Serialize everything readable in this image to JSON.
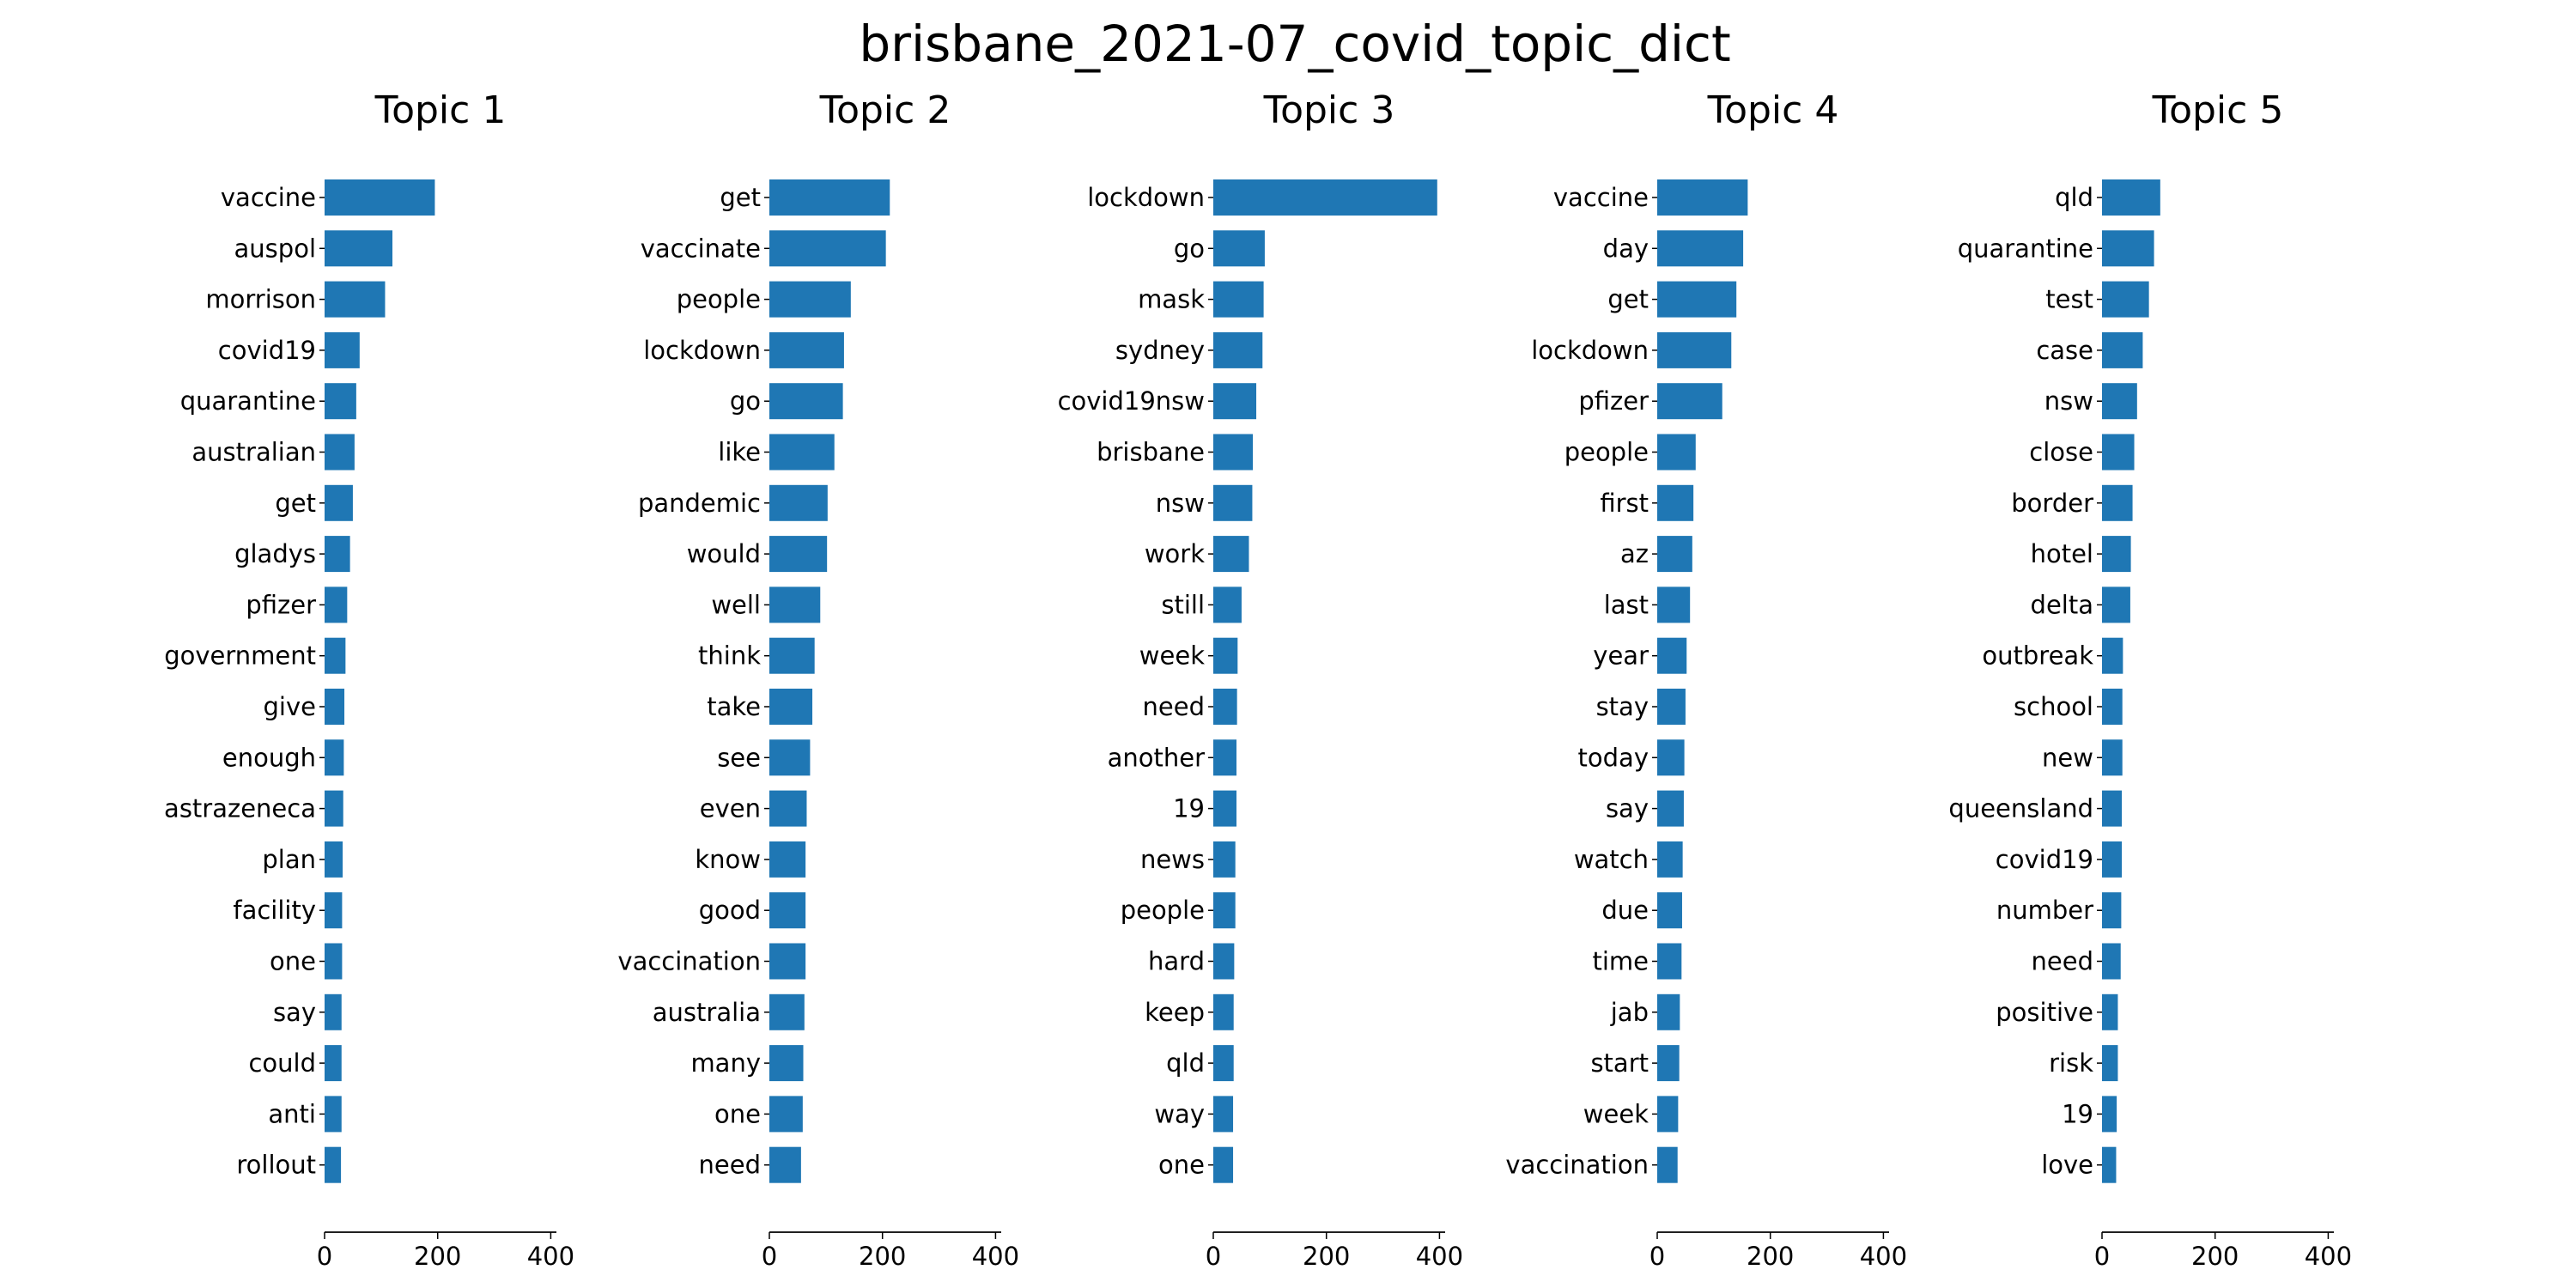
{
  "title": "brisbane_2021-07_covid_topic_dict",
  "bar_color": "#1f77b4",
  "chart_data": [
    {
      "type": "bar",
      "orientation": "horizontal",
      "title": "Topic 1",
      "xlim": [
        0,
        410
      ],
      "xticks": [
        "0",
        "200",
        "400"
      ],
      "categories": [
        "vaccine",
        "auspol",
        "morrison",
        "covid19",
        "quarantine",
        "australian",
        "get",
        "gladys",
        "pfizer",
        "government",
        "give",
        "enough",
        "astrazeneca",
        "plan",
        "facility",
        "one",
        "say",
        "could",
        "anti",
        "rollout"
      ],
      "values": [
        195,
        120,
        107,
        62,
        56,
        53,
        50,
        45,
        40,
        37,
        35,
        34,
        33,
        32,
        31,
        31,
        30,
        30,
        30,
        29
      ]
    },
    {
      "type": "bar",
      "orientation": "horizontal",
      "title": "Topic 2",
      "xlim": [
        0,
        410
      ],
      "xticks": [
        "0",
        "200",
        "400"
      ],
      "categories": [
        "get",
        "vaccinate",
        "people",
        "lockdown",
        "go",
        "like",
        "pandemic",
        "would",
        "well",
        "think",
        "take",
        "see",
        "even",
        "know",
        "good",
        "vaccination",
        "australia",
        "many",
        "one",
        "need"
      ],
      "values": [
        213,
        206,
        144,
        132,
        130,
        115,
        103,
        102,
        90,
        80,
        76,
        72,
        66,
        64,
        64,
        64,
        62,
        60,
        59,
        56
      ]
    },
    {
      "type": "bar",
      "orientation": "horizontal",
      "title": "Topic 3",
      "xlim": [
        0,
        410
      ],
      "xticks": [
        "0",
        "200",
        "400"
      ],
      "categories": [
        "lockdown",
        "go",
        "mask",
        "sydney",
        "covid19nsw",
        "brisbane",
        "nsw",
        "work",
        "still",
        "week",
        "need",
        "another",
        "19",
        "news",
        "people",
        "hard",
        "keep",
        "qld",
        "way",
        "one"
      ],
      "values": [
        396,
        91,
        89,
        87,
        76,
        70,
        69,
        63,
        50,
        43,
        42,
        41,
        41,
        39,
        39,
        37,
        36,
        36,
        35,
        35
      ]
    },
    {
      "type": "bar",
      "orientation": "horizontal",
      "title": "Topic 4",
      "xlim": [
        0,
        410
      ],
      "xticks": [
        "0",
        "200",
        "400"
      ],
      "categories": [
        "vaccine",
        "day",
        "get",
        "lockdown",
        "pfizer",
        "people",
        "first",
        "az",
        "last",
        "year",
        "stay",
        "today",
        "say",
        "watch",
        "due",
        "time",
        "jab",
        "start",
        "week",
        "vaccination"
      ],
      "values": [
        160,
        152,
        140,
        131,
        115,
        68,
        64,
        62,
        58,
        52,
        50,
        48,
        47,
        45,
        44,
        43,
        40,
        39,
        37,
        36
      ]
    },
    {
      "type": "bar",
      "orientation": "horizontal",
      "title": "Topic 5",
      "xlim": [
        0,
        410
      ],
      "xticks": [
        "0",
        "200",
        "400"
      ],
      "categories": [
        "qld",
        "quarantine",
        "test",
        "case",
        "nsw",
        "close",
        "border",
        "hotel",
        "delta",
        "outbreak",
        "school",
        "new",
        "queensland",
        "covid19",
        "number",
        "need",
        "positive",
        "risk",
        "19",
        "love"
      ],
      "values": [
        103,
        92,
        83,
        72,
        62,
        57,
        54,
        51,
        50,
        37,
        36,
        36,
        35,
        35,
        34,
        33,
        28,
        28,
        26,
        25
      ]
    }
  ]
}
